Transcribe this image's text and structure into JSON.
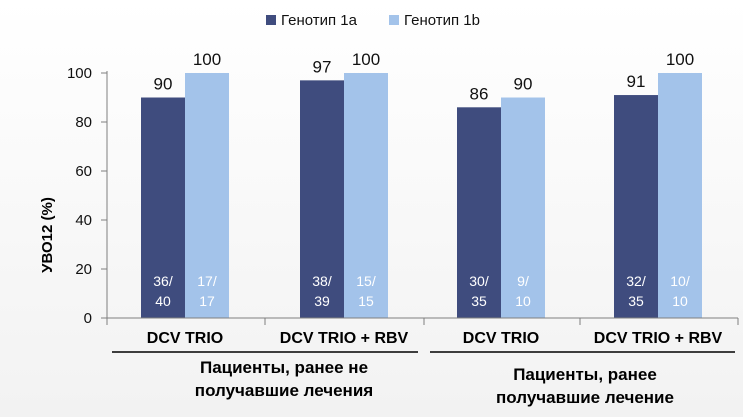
{
  "chart_data": {
    "type": "bar",
    "ylabel": "УВО12 (%)",
    "ylim": [
      0,
      100
    ],
    "yticks": [
      0,
      20,
      40,
      60,
      80,
      100
    ],
    "grid": false,
    "legend_position": "top",
    "categories": [
      "DCV TRIO",
      "DCV TRIO + RBV",
      "DCV TRIO",
      "DCV TRIO + RBV"
    ],
    "groups": [
      {
        "label": "Пациенты, ранее не получавшие лечения",
        "lines": [
          "Пациенты, ранее не",
          "получавшие лечения"
        ],
        "categories": [
          0,
          1
        ]
      },
      {
        "label": "Пациенты, ранее получавшие лечение",
        "lines": [
          "Пациенты, ранее",
          "получавшие лечение"
        ],
        "categories": [
          2,
          3
        ]
      }
    ],
    "series": [
      {
        "name": "Генотип 1a",
        "color": "#3f4c7e",
        "values": [
          90,
          97,
          86,
          91
        ],
        "fractions": [
          [
            "36/",
            "40"
          ],
          [
            "38/",
            "39"
          ],
          [
            "30/",
            "35"
          ],
          [
            "32/",
            "35"
          ]
        ]
      },
      {
        "name": "Генотип 1b",
        "color": "#a3c3ea",
        "values": [
          100,
          100,
          90,
          100
        ],
        "fractions": [
          [
            "17/",
            "17"
          ],
          [
            "15/",
            "15"
          ],
          [
            "9/",
            "10"
          ],
          [
            "10/",
            "10"
          ]
        ]
      }
    ]
  }
}
